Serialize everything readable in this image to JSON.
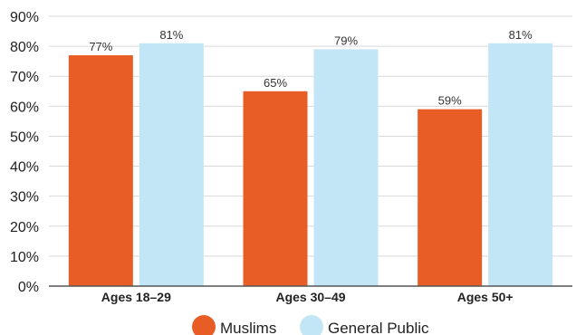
{
  "chart_data": {
    "type": "bar",
    "categories": [
      "Ages 18–29",
      "Ages 30–49",
      "Ages 50+"
    ],
    "series": [
      {
        "name": "Muslims",
        "values": [
          77,
          65,
          59
        ],
        "labels": [
          "77%",
          "65%",
          "59%"
        ],
        "color": "#e85d26"
      },
      {
        "name": "General Public",
        "values": [
          81,
          79,
          81
        ],
        "labels": [
          "81%",
          "79%",
          "81%"
        ],
        "color": "#c3e6f7"
      }
    ],
    "ylim": [
      0,
      90
    ],
    "yticks": [
      0,
      10,
      20,
      30,
      40,
      50,
      60,
      70,
      80,
      90
    ],
    "ytick_labels": [
      "0%",
      "10%",
      "20%",
      "30%",
      "40%",
      "50%",
      "60%",
      "70%",
      "80%",
      "90%"
    ],
    "grid": true,
    "legend": "bottom-center"
  }
}
